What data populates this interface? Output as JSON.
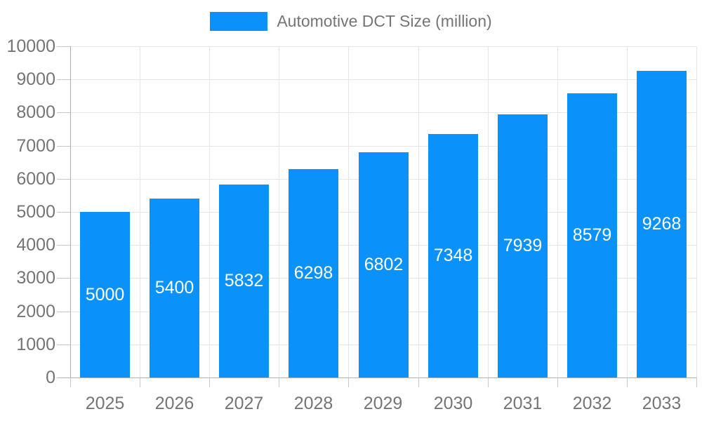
{
  "chart_data": {
    "type": "bar",
    "title": "Automotive DCT Size (million)",
    "legend_label": "Automotive DCT Size (million)",
    "legend_position": "top",
    "categories": [
      "2025",
      "2026",
      "2027",
      "2028",
      "2029",
      "2030",
      "2031",
      "2032",
      "2033"
    ],
    "values": [
      5000,
      5400,
      5832,
      6298,
      6802,
      7348,
      7939,
      8579,
      9268
    ],
    "value_labels": [
      "5000",
      "5400",
      "5832",
      "6298",
      "6802",
      "7348",
      "7939",
      "8579",
      "9268"
    ],
    "xlabel": "",
    "ylabel": "",
    "ylim": [
      0,
      10000
    ],
    "y_ticks": [
      0,
      1000,
      2000,
      3000,
      4000,
      5000,
      6000,
      7000,
      8000,
      9000,
      10000
    ],
    "grid": true,
    "colors": {
      "bar": "#0a91fa",
      "axis_text": "#757575",
      "value_text": "#ffffff",
      "grid": "#e6e6e6",
      "baseline": "#b3b3b3",
      "axis_line": "#ababab",
      "tick": "#c6c6c6",
      "background": "#ffffff"
    }
  }
}
